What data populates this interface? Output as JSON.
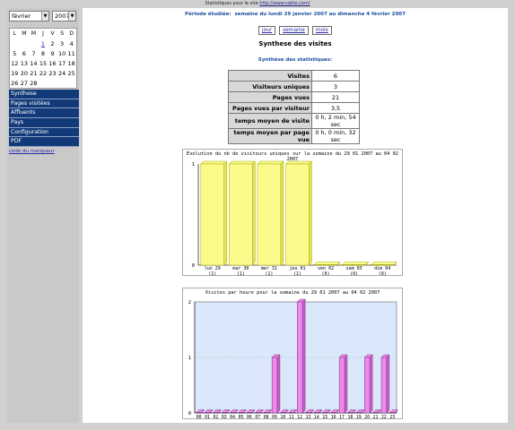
{
  "topbar": {
    "text": "Statistiques pour le site",
    "link": "http://www.sqlite.com/"
  },
  "sidebar": {
    "month": "février",
    "year": "2007",
    "calendar_headers": [
      "L",
      "M",
      "M",
      "J",
      "V",
      "S",
      "D"
    ],
    "calendar_rows": [
      [
        "",
        "",
        "",
        "1",
        "2",
        "3",
        "4"
      ],
      [
        "5",
        "6",
        "7",
        "8",
        "9",
        "10",
        "11"
      ],
      [
        "12",
        "13",
        "14",
        "15",
        "16",
        "17",
        "18"
      ],
      [
        "19",
        "20",
        "21",
        "22",
        "23",
        "24",
        "25"
      ],
      [
        "26",
        "27",
        "28",
        "",
        "",
        "",
        ""
      ]
    ],
    "menu": [
      "Synthese",
      "Pages visitées",
      "Affluents",
      "Pays",
      "Configuration",
      "PDF"
    ],
    "tag_link": "code du marqueur"
  },
  "main": {
    "period_label": "Période étudiée:",
    "period_value": "semaine du lundi 29 janvier 2007 au dimanche 4 février 2007",
    "buttons": [
      "jour",
      "semaine",
      "mois"
    ],
    "title": "Synthese des visites",
    "subtitle": "Synthèse des statistiques:",
    "stats": [
      {
        "label": "Visites",
        "value": "6"
      },
      {
        "label": "Visiteurs uniques",
        "value": "3"
      },
      {
        "label": "Pages vues",
        "value": "21"
      },
      {
        "label": "Pages vues par visiteur",
        "value": "3,5"
      },
      {
        "label": "temps moyen de visite",
        "value": "0 h, 2 min, 54 sec"
      },
      {
        "label": "temps moyen par page vue",
        "value": "0 h, 0 min, 32 sec"
      }
    ]
  },
  "chart_data": [
    {
      "type": "bar",
      "title": "Evolution du nb de visiteurs uniques sur la semaine du 29 01 2007 au 04 02 2007",
      "categories": [
        "lun 29",
        "mar 30",
        "mer 31",
        "jeu 01",
        "ven 02",
        "sam 03",
        "dim 04"
      ],
      "sublabels": [
        "(1)",
        "(1)",
        "(1)",
        "(1)",
        "(0)",
        "(0)",
        "(0)"
      ],
      "values": [
        1,
        1,
        1,
        1,
        0,
        0,
        0
      ],
      "ylim": [
        0,
        1
      ],
      "yticks": [
        "0",
        "1"
      ],
      "colors": {
        "bar": "#fbfb8c",
        "bar_side": "#e3e35a",
        "stroke": "#a8a800"
      }
    },
    {
      "type": "bar",
      "title": "Visites par heure pour la semaine du 29 01 2007 au 04 02 2007",
      "categories": [
        "00",
        "01",
        "02",
        "03",
        "04",
        "05",
        "06",
        "07",
        "08",
        "09",
        "10",
        "11",
        "12",
        "13",
        "14",
        "15",
        "16",
        "17",
        "18",
        "19",
        "20",
        "21",
        "22",
        "23"
      ],
      "values": [
        0,
        0,
        0,
        0,
        0,
        0,
        0,
        0,
        0,
        1,
        0,
        0,
        2,
        0,
        0,
        0,
        0,
        1,
        0,
        0,
        1,
        0,
        1,
        0
      ],
      "ylim": [
        0,
        2
      ],
      "yticks": [
        "0",
        "1",
        "2"
      ],
      "colors": {
        "bar": "#ec8aec",
        "bar_side": "#c860c8",
        "stroke": "#803080",
        "bg": "#dbe8fb"
      }
    }
  ]
}
